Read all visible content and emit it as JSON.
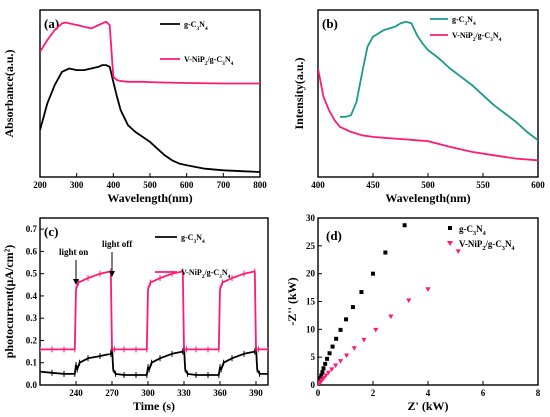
{
  "chart_data": [
    {
      "panel": "(a)",
      "type": "line",
      "xlabel": "Wavelength(nm)",
      "ylabel": "Absorbance(a.u.)",
      "xlim": [
        200,
        800
      ],
      "ylim": [
        0,
        1
      ],
      "xticks": [
        200,
        300,
        400,
        500,
        600,
        700,
        800
      ],
      "yticks_shown": false,
      "legend_position": "top-right",
      "series": [
        {
          "name": "g-C3N4",
          "color": "#000000",
          "x": [
            200,
            220,
            240,
            260,
            280,
            300,
            320,
            340,
            360,
            370,
            380,
            390,
            400,
            410,
            420,
            440,
            460,
            480,
            500,
            520,
            540,
            560,
            580,
            600,
            650,
            700,
            750,
            800
          ],
          "y": [
            0.28,
            0.44,
            0.55,
            0.63,
            0.65,
            0.64,
            0.64,
            0.65,
            0.66,
            0.67,
            0.67,
            0.66,
            0.57,
            0.48,
            0.4,
            0.31,
            0.27,
            0.24,
            0.21,
            0.17,
            0.13,
            0.1,
            0.08,
            0.07,
            0.05,
            0.04,
            0.035,
            0.03
          ]
        },
        {
          "name": "V-NiP2/g-C3N4",
          "color": "#ff1a75",
          "x": [
            200,
            220,
            240,
            260,
            270,
            280,
            300,
            320,
            340,
            360,
            370,
            380,
            390,
            400,
            410,
            420,
            440,
            460,
            480,
            500,
            550,
            600,
            700,
            800
          ],
          "y": [
            0.75,
            0.82,
            0.88,
            0.92,
            0.925,
            0.92,
            0.91,
            0.9,
            0.89,
            0.91,
            0.92,
            0.93,
            0.91,
            0.6,
            0.58,
            0.575,
            0.57,
            0.57,
            0.57,
            0.568,
            0.565,
            0.563,
            0.56,
            0.56
          ]
        }
      ]
    },
    {
      "panel": "(b)",
      "type": "line",
      "xlabel": "Wavelength(nm)",
      "ylabel": "Intensity(a.u.)",
      "xlim": [
        400,
        600
      ],
      "ylim": [
        0,
        1
      ],
      "xticks": [
        400,
        450,
        500,
        550,
        600
      ],
      "yticks_shown": false,
      "legend_position": "top-right",
      "series": [
        {
          "name": "g-C3N4",
          "color": "#1a9a8a",
          "x": [
            420,
            425,
            430,
            435,
            440,
            445,
            450,
            455,
            460,
            465,
            470,
            475,
            480,
            485,
            490,
            495,
            500,
            510,
            520,
            530,
            540,
            550,
            560,
            570,
            580,
            590,
            600
          ],
          "y": [
            0.36,
            0.36,
            0.37,
            0.45,
            0.62,
            0.78,
            0.84,
            0.86,
            0.88,
            0.89,
            0.9,
            0.92,
            0.93,
            0.92,
            0.85,
            0.8,
            0.76,
            0.71,
            0.65,
            0.6,
            0.55,
            0.49,
            0.43,
            0.38,
            0.33,
            0.27,
            0.22
          ]
        },
        {
          "name": "V-NiP2/g-C3N4",
          "color": "#ff1a75",
          "x": [
            400,
            405,
            410,
            415,
            420,
            430,
            440,
            450,
            460,
            470,
            480,
            490,
            500,
            520,
            540,
            560,
            580,
            600
          ],
          "y": [
            0.65,
            0.48,
            0.4,
            0.34,
            0.3,
            0.27,
            0.25,
            0.24,
            0.235,
            0.23,
            0.225,
            0.22,
            0.215,
            0.18,
            0.15,
            0.13,
            0.11,
            0.1
          ]
        }
      ]
    },
    {
      "panel": "(c)",
      "type": "line",
      "xlabel": "Time (s)",
      "ylabel": "photocurrent(μA/cm²)",
      "xlim": [
        210,
        400
      ],
      "ylim": [
        0.0,
        0.75
      ],
      "xticks": [
        240,
        270,
        300,
        330,
        360,
        390
      ],
      "yticks": [
        0.0,
        0.1,
        0.2,
        0.3,
        0.4,
        0.5,
        0.6,
        0.7
      ],
      "ytick_labels": [
        "0.0",
        "0.1",
        "0.2",
        "0.3",
        "0.4",
        "0.5",
        "0.6",
        "0.7"
      ],
      "legend_position": "top-right",
      "annotations": [
        {
          "text": "light on",
          "x": 240
        },
        {
          "text": "light off",
          "x": 270
        }
      ],
      "series": [
        {
          "name": "g-C3N4",
          "color": "#000000",
          "x": [
            210,
            220,
            230,
            239,
            240,
            241,
            243,
            250,
            260,
            269,
            270,
            271,
            273,
            280,
            290,
            299,
            300,
            301,
            303,
            310,
            320,
            329,
            330,
            331,
            333,
            340,
            350,
            359,
            360,
            361,
            363,
            370,
            380,
            389,
            390,
            391,
            393,
            400
          ],
          "y": [
            0.06,
            0.055,
            0.05,
            0.05,
            0.09,
            0.07,
            0.1,
            0.12,
            0.13,
            0.14,
            0.17,
            0.07,
            0.05,
            0.045,
            0.045,
            0.045,
            0.08,
            0.07,
            0.1,
            0.12,
            0.14,
            0.15,
            0.17,
            0.07,
            0.05,
            0.045,
            0.045,
            0.045,
            0.08,
            0.07,
            0.1,
            0.12,
            0.14,
            0.15,
            0.17,
            0.07,
            0.05,
            0.05
          ]
        },
        {
          "name": "V-NiP2/g-C3N4",
          "color": "#ff1a75",
          "x": [
            210,
            220,
            230,
            239,
            240,
            242,
            250,
            260,
            269,
            270,
            272,
            280,
            290,
            299,
            300,
            302,
            310,
            320,
            329,
            330,
            332,
            340,
            350,
            359,
            360,
            362,
            370,
            380,
            389,
            390,
            392,
            400
          ],
          "y": [
            0.16,
            0.16,
            0.16,
            0.16,
            0.43,
            0.46,
            0.48,
            0.5,
            0.51,
            0.16,
            0.16,
            0.16,
            0.16,
            0.16,
            0.43,
            0.46,
            0.48,
            0.5,
            0.51,
            0.16,
            0.16,
            0.16,
            0.16,
            0.16,
            0.43,
            0.46,
            0.48,
            0.5,
            0.51,
            0.16,
            0.16,
            0.16
          ]
        }
      ]
    },
    {
      "panel": "(d)",
      "type": "scatter",
      "xlabel": "Z' (kW)",
      "ylabel": "-Z'' (kW)",
      "xlim": [
        0,
        8
      ],
      "ylim": [
        0,
        30
      ],
      "xticks": [
        0,
        2,
        4,
        6,
        8
      ],
      "yticks": [
        0,
        5,
        10,
        15,
        20,
        25,
        30
      ],
      "legend_position": "top-right",
      "series": [
        {
          "name": "g-C3N4",
          "color": "#000000",
          "marker": "square",
          "x": [
            0.02,
            0.04,
            0.06,
            0.09,
            0.12,
            0.16,
            0.2,
            0.26,
            0.33,
            0.42,
            0.53,
            0.66,
            0.82,
            1.02,
            1.27,
            1.58,
            2.0,
            2.45,
            3.15
          ],
          "y": [
            0.2,
            0.5,
            0.8,
            1.2,
            1.7,
            2.3,
            3.0,
            3.8,
            4.7,
            5.7,
            6.9,
            8.3,
            9.9,
            11.8,
            14.0,
            16.7,
            20.0,
            23.8,
            28.7
          ]
        },
        {
          "name": "V-NiP2/g-C3N4",
          "color": "#ff1a75",
          "marker": "triangle-down",
          "x": [
            0.03,
            0.06,
            0.1,
            0.15,
            0.21,
            0.29,
            0.38,
            0.5,
            0.64,
            0.82,
            1.04,
            1.32,
            1.67,
            2.1,
            2.65,
            3.3,
            4.0,
            5.1
          ],
          "y": [
            0.15,
            0.35,
            0.6,
            0.9,
            1.25,
            1.7,
            2.2,
            2.8,
            3.5,
            4.3,
            5.3,
            6.6,
            8.1,
            9.9,
            12.3,
            15.2,
            17.2,
            24.0
          ]
        }
      ]
    }
  ]
}
